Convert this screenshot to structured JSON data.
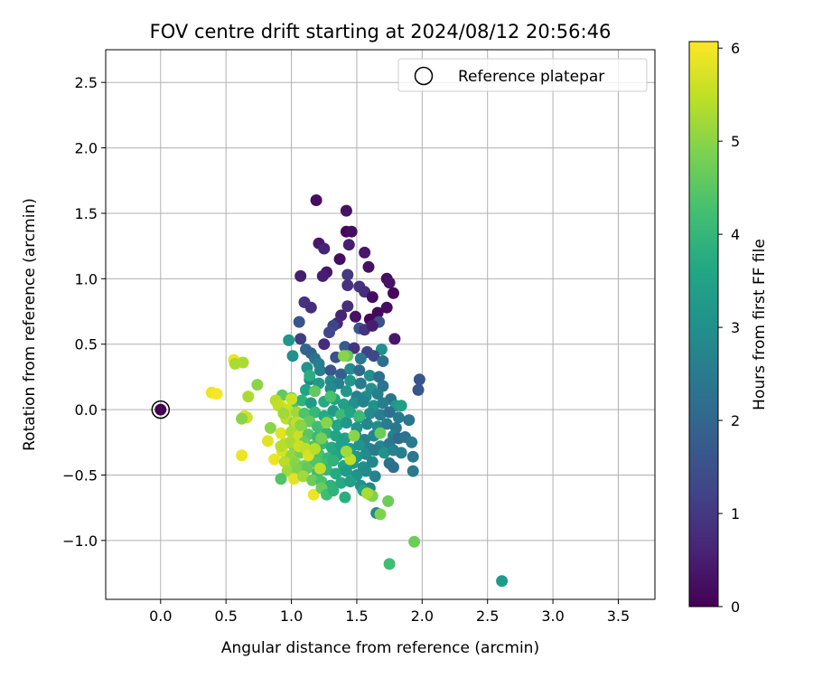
{
  "chart_data": {
    "type": "scatter",
    "title": "FOV centre drift starting at 2024/08/12 20:56:46",
    "xlabel": "Angular distance from reference (arcmin)",
    "ylabel": "Rotation from reference (arcmin)",
    "xlim": [
      -0.42,
      3.78
    ],
    "ylim": [
      -1.45,
      2.75
    ],
    "x_ticks": [
      0.0,
      0.5,
      1.0,
      1.5,
      2.0,
      2.5,
      3.0,
      3.5
    ],
    "x_tick_labels": [
      "0.0",
      "0.5",
      "1.0",
      "1.5",
      "2.0",
      "2.5",
      "3.0",
      "3.5"
    ],
    "y_ticks": [
      -1.0,
      -0.5,
      0.0,
      0.5,
      1.0,
      1.5,
      2.0,
      2.5
    ],
    "y_tick_labels": [
      "−1.0",
      "−0.5",
      "0.0",
      "0.5",
      "1.0",
      "1.5",
      "2.0",
      "2.5"
    ],
    "grid": true,
    "legend": {
      "label": "Reference platepar",
      "placement": "top-right"
    },
    "colorbar": {
      "label": "Hours from first FF file",
      "colormap": "viridis",
      "range": [
        0,
        6.07
      ],
      "ticks": [
        0,
        1,
        2,
        3,
        4,
        5,
        6
      ],
      "tick_labels": [
        "0",
        "1",
        "2",
        "3",
        "4",
        "5",
        "6"
      ]
    },
    "reference_point": {
      "x": 0.0,
      "y": 0.0,
      "hours": 0.0
    },
    "points": [
      [
        1.19,
        1.6,
        0.2
      ],
      [
        1.42,
        1.52,
        0.3
      ],
      [
        1.42,
        1.36,
        0.1
      ],
      [
        1.46,
        1.36,
        0.2
      ],
      [
        1.44,
        1.26,
        0.5
      ],
      [
        1.21,
        1.27,
        0.4
      ],
      [
        1.25,
        1.23,
        0.6
      ],
      [
        1.56,
        1.2,
        0.4
      ],
      [
        1.37,
        1.15,
        0.2
      ],
      [
        1.59,
        1.09,
        0.3
      ],
      [
        1.27,
        1.05,
        0.4
      ],
      [
        1.24,
        1.02,
        0.5
      ],
      [
        1.07,
        1.02,
        0.5
      ],
      [
        1.43,
        1.03,
        1.0
      ],
      [
        1.43,
        0.95,
        0.9
      ],
      [
        1.73,
        1.0,
        0.2
      ],
      [
        1.75,
        0.97,
        0.3
      ],
      [
        1.52,
        0.94,
        0.9
      ],
      [
        1.56,
        0.9,
        0.8
      ],
      [
        1.78,
        0.89,
        0.1
      ],
      [
        1.62,
        0.86,
        0.2
      ],
      [
        1.1,
        0.82,
        0.9
      ],
      [
        1.15,
        0.78,
        0.8
      ],
      [
        1.43,
        0.79,
        0.8
      ],
      [
        1.73,
        0.78,
        0.2
      ],
      [
        1.66,
        0.74,
        0.1
      ],
      [
        1.06,
        0.67,
        1.6
      ],
      [
        1.38,
        0.72,
        0.6
      ],
      [
        1.49,
        0.71,
        0.3
      ],
      [
        1.6,
        0.69,
        0.1
      ],
      [
        1.67,
        0.67,
        1.5
      ],
      [
        1.35,
        0.66,
        0.7
      ],
      [
        1.32,
        0.64,
        1.2
      ],
      [
        1.52,
        0.62,
        1.6
      ],
      [
        1.56,
        0.61,
        0.9
      ],
      [
        1.62,
        0.64,
        0.5
      ],
      [
        1.79,
        0.54,
        0.4
      ],
      [
        1.29,
        0.59,
        1.3
      ],
      [
        0.98,
        0.53,
        3.2
      ],
      [
        1.07,
        0.54,
        1.1
      ],
      [
        1.25,
        0.5,
        0.8
      ],
      [
        1.41,
        0.48,
        1.8
      ],
      [
        1.48,
        0.47,
        0.9
      ],
      [
        1.58,
        0.44,
        1.2
      ],
      [
        1.69,
        0.46,
        3.0
      ],
      [
        1.11,
        0.46,
        2.0
      ],
      [
        1.15,
        0.43,
        1.9
      ],
      [
        1.01,
        0.41,
        3.0
      ],
      [
        1.18,
        0.39,
        2.3
      ],
      [
        1.34,
        0.4,
        1.5
      ],
      [
        1.43,
        0.41,
        4.6
      ],
      [
        1.53,
        0.39,
        2.4
      ],
      [
        1.63,
        0.41,
        1.3
      ],
      [
        1.7,
        0.37,
        2.2
      ],
      [
        1.21,
        0.35,
        2.6
      ],
      [
        1.12,
        0.32,
        3.1
      ],
      [
        1.22,
        0.3,
        2.6
      ],
      [
        1.3,
        0.3,
        1.6
      ],
      [
        1.38,
        0.27,
        1.8
      ],
      [
        1.45,
        0.31,
        2.9
      ],
      [
        1.52,
        0.3,
        2.1
      ],
      [
        1.6,
        0.26,
        3.0
      ],
      [
        1.67,
        0.25,
        2.2
      ],
      [
        1.98,
        0.23,
        1.6
      ],
      [
        1.14,
        0.23,
        2.8
      ],
      [
        1.21,
        0.2,
        3.3
      ],
      [
        1.3,
        0.22,
        2.9
      ],
      [
        1.36,
        0.2,
        2.6
      ],
      [
        1.45,
        0.22,
        3.2
      ],
      [
        1.53,
        0.2,
        2.5
      ],
      [
        1.61,
        0.16,
        3.0
      ],
      [
        1.7,
        0.18,
        2.3
      ],
      [
        1.97,
        0.15,
        1.6
      ],
      [
        1.11,
        0.15,
        3.5
      ],
      [
        1.18,
        0.14,
        4.6
      ],
      [
        1.3,
        0.16,
        2.9
      ],
      [
        1.42,
        0.14,
        3.2
      ],
      [
        1.5,
        0.1,
        2.6
      ],
      [
        1.57,
        0.1,
        2.9
      ],
      [
        1.66,
        0.12,
        2.6
      ],
      [
        1.76,
        0.08,
        2.3
      ],
      [
        0.93,
        0.11,
        4.6
      ],
      [
        1.0,
        0.09,
        4.8
      ],
      [
        1.02,
        0.06,
        4.3
      ],
      [
        1.08,
        0.07,
        3.9
      ],
      [
        1.15,
        0.05,
        3.3
      ],
      [
        1.25,
        0.06,
        3.7
      ],
      [
        1.33,
        0.08,
        3.5
      ],
      [
        1.4,
        0.04,
        3.4
      ],
      [
        1.48,
        0.05,
        3.0
      ],
      [
        1.55,
        0.06,
        2.7
      ],
      [
        1.63,
        0.03,
        3.1
      ],
      [
        1.7,
        0.05,
        2.6
      ],
      [
        1.8,
        0.03,
        3.2
      ],
      [
        1.84,
        0.03,
        3.4
      ],
      [
        0.92,
        0.03,
        5.8
      ],
      [
        0.97,
        0.0,
        5.6
      ],
      [
        1.04,
        -0.02,
        5.2
      ],
      [
        1.1,
        -0.03,
        4.4
      ],
      [
        1.18,
        -0.02,
        4.0
      ],
      [
        1.25,
        -0.05,
        3.7
      ],
      [
        1.32,
        -0.01,
        3.3
      ],
      [
        1.38,
        -0.04,
        4.1
      ],
      [
        1.45,
        -0.02,
        3.5
      ],
      [
        1.52,
        -0.06,
        3.0
      ],
      [
        1.6,
        -0.03,
        2.9
      ],
      [
        1.68,
        -0.04,
        2.6
      ],
      [
        1.75,
        -0.02,
        2.2
      ],
      [
        1.82,
        -0.06,
        2.5
      ],
      [
        1.9,
        -0.08,
        2.4
      ],
      [
        0.96,
        -0.07,
        5.5
      ],
      [
        1.02,
        -0.1,
        5.1
      ],
      [
        1.08,
        -0.12,
        4.9
      ],
      [
        1.14,
        -0.09,
        4.6
      ],
      [
        1.2,
        -0.13,
        4.2
      ],
      [
        1.28,
        -0.08,
        3.8
      ],
      [
        1.35,
        -0.12,
        3.6
      ],
      [
        1.42,
        -0.1,
        3.2
      ],
      [
        1.5,
        -0.14,
        3.1
      ],
      [
        1.58,
        -0.11,
        2.8
      ],
      [
        1.66,
        -0.13,
        2.9
      ],
      [
        1.73,
        -0.11,
        2.6
      ],
      [
        1.8,
        -0.14,
        2.4
      ],
      [
        0.84,
        -0.14,
        5.0
      ],
      [
        0.92,
        -0.18,
        5.8
      ],
      [
        1.0,
        -0.17,
        5.3
      ],
      [
        1.06,
        -0.2,
        5.6
      ],
      [
        1.13,
        -0.19,
        4.5
      ],
      [
        1.2,
        -0.21,
        4.1
      ],
      [
        1.27,
        -0.18,
        3.9
      ],
      [
        1.34,
        -0.2,
        3.5
      ],
      [
        1.41,
        -0.22,
        3.4
      ],
      [
        1.49,
        -0.19,
        3.0
      ],
      [
        1.56,
        -0.23,
        2.7
      ],
      [
        1.63,
        -0.2,
        2.8
      ],
      [
        1.68,
        -0.18,
        4.7
      ],
      [
        1.78,
        -0.2,
        2.6
      ],
      [
        1.82,
        -0.22,
        2.1
      ],
      [
        1.87,
        -0.21,
        2.3
      ],
      [
        0.82,
        -0.24,
        5.8
      ],
      [
        0.95,
        -0.26,
        5.5
      ],
      [
        1.02,
        -0.28,
        5.0
      ],
      [
        1.1,
        -0.25,
        4.7
      ],
      [
        1.17,
        -0.28,
        4.4
      ],
      [
        1.24,
        -0.26,
        4.0
      ],
      [
        1.31,
        -0.29,
        3.7
      ],
      [
        1.38,
        -0.27,
        3.4
      ],
      [
        1.45,
        -0.3,
        3.3
      ],
      [
        1.52,
        -0.27,
        3.1
      ],
      [
        1.6,
        -0.3,
        2.7
      ],
      [
        1.68,
        -0.28,
        2.8
      ],
      [
        1.75,
        -0.26,
        2.4
      ],
      [
        1.92,
        -0.25,
        2.5
      ],
      [
        0.62,
        -0.35,
        5.9
      ],
      [
        0.93,
        -0.32,
        5.7
      ],
      [
        1.0,
        -0.35,
        5.1
      ],
      [
        1.07,
        -0.33,
        4.8
      ],
      [
        1.14,
        -0.36,
        4.6
      ],
      [
        1.21,
        -0.34,
        4.3
      ],
      [
        1.28,
        -0.37,
        4.0
      ],
      [
        1.35,
        -0.35,
        3.6
      ],
      [
        1.42,
        -0.33,
        3.3
      ],
      [
        1.5,
        -0.36,
        3.2
      ],
      [
        1.57,
        -0.34,
        2.9
      ],
      [
        1.64,
        -0.31,
        2.5
      ],
      [
        1.71,
        -0.33,
        3.1
      ],
      [
        1.78,
        -0.31,
        2.7
      ],
      [
        1.84,
        -0.33,
        2.6
      ],
      [
        1.93,
        -0.36,
        2.4
      ],
      [
        0.87,
        -0.38,
        5.9
      ],
      [
        0.95,
        -0.4,
        5.4
      ],
      [
        1.03,
        -0.41,
        5.0
      ],
      [
        1.1,
        -0.43,
        4.7
      ],
      [
        1.18,
        -0.4,
        4.4
      ],
      [
        1.25,
        -0.42,
        4.2
      ],
      [
        1.32,
        -0.39,
        3.9
      ],
      [
        1.4,
        -0.43,
        3.5
      ],
      [
        1.47,
        -0.41,
        3.3
      ],
      [
        1.55,
        -0.44,
        3.0
      ],
      [
        1.62,
        -0.4,
        2.8
      ],
      [
        1.75,
        -0.41,
        2.3
      ],
      [
        1.78,
        -0.44,
        2.2
      ],
      [
        0.97,
        -0.47,
        5.2
      ],
      [
        1.05,
        -0.46,
        4.9
      ],
      [
        1.12,
        -0.45,
        4.6
      ],
      [
        1.2,
        -0.48,
        4.2
      ],
      [
        1.27,
        -0.46,
        4.0
      ],
      [
        1.34,
        -0.49,
        3.7
      ],
      [
        1.42,
        -0.47,
        3.3
      ],
      [
        1.5,
        -0.5,
        3.1
      ],
      [
        1.57,
        -0.47,
        2.9
      ],
      [
        1.64,
        -0.51,
        2.7
      ],
      [
        1.93,
        -0.47,
        2.5
      ],
      [
        0.92,
        -0.53,
        4.4
      ],
      [
        1.02,
        -0.53,
        5.8
      ],
      [
        1.09,
        -0.51,
        5.2
      ],
      [
        1.16,
        -0.54,
        4.7
      ],
      [
        1.23,
        -0.55,
        4.3
      ],
      [
        1.3,
        -0.58,
        3.9
      ],
      [
        1.38,
        -0.56,
        3.7
      ],
      [
        1.45,
        -0.55,
        3.4
      ],
      [
        1.53,
        -0.58,
        3.1
      ],
      [
        1.6,
        -0.6,
        2.8
      ],
      [
        1.17,
        -0.65,
        5.9
      ],
      [
        1.23,
        -0.6,
        4.7
      ],
      [
        1.27,
        -0.65,
        4.2
      ],
      [
        1.32,
        -0.62,
        3.9
      ],
      [
        1.41,
        -0.67,
        3.8
      ],
      [
        1.55,
        -0.62,
        3.5
      ],
      [
        1.6,
        -0.65,
        5.0
      ],
      [
        1.62,
        -0.66,
        4.9
      ],
      [
        1.74,
        -0.7,
        4.7
      ],
      [
        1.65,
        -0.79,
        2.8
      ],
      [
        1.68,
        -0.8,
        4.9
      ],
      [
        1.94,
        -1.01,
        4.7
      ],
      [
        1.75,
        -1.18,
        4.2
      ],
      [
        2.61,
        -1.31,
        3.3
      ],
      [
        0.56,
        0.38,
        5.9
      ],
      [
        0.57,
        0.35,
        5.3
      ],
      [
        0.63,
        0.36,
        5.3
      ],
      [
        0.39,
        0.13,
        5.9
      ],
      [
        0.43,
        0.12,
        6.0
      ],
      [
        0.74,
        0.19,
        5.0
      ],
      [
        0.67,
        0.1,
        5.3
      ],
      [
        0.64,
        -0.05,
        5.8
      ],
      [
        0.66,
        -0.06,
        5.6
      ],
      [
        0.62,
        -0.07,
        5.0
      ],
      [
        0.88,
        0.07,
        5.4
      ],
      [
        0.9,
        0.03,
        5.5
      ],
      [
        0.94,
        -0.03,
        5.2
      ],
      [
        1.0,
        0.08,
        5.6
      ],
      [
        1.04,
        -0.1,
        5.5
      ],
      [
        1.07,
        -0.12,
        5.0
      ],
      [
        0.99,
        -0.25,
        5.3
      ],
      [
        1.06,
        -0.28,
        5.6
      ],
      [
        0.92,
        -0.28,
        5.4
      ],
      [
        1.11,
        -0.3,
        5.5
      ],
      [
        1.13,
        -0.35,
        5.7
      ],
      [
        1.18,
        -0.3,
        5.4
      ],
      [
        1.22,
        -0.45,
        5.5
      ],
      [
        1.27,
        -0.1,
        5.0
      ],
      [
        1.45,
        -0.38,
        5.5
      ],
      [
        1.42,
        -0.32,
        5.2
      ],
      [
        1.48,
        -0.2,
        5.0
      ],
      [
        1.4,
        0.41,
        5.0
      ],
      [
        1.58,
        -0.64,
        5.3
      ],
      [
        1.52,
        -0.05,
        4.1
      ],
      [
        1.3,
        0.1,
        4.3
      ],
      [
        1.14,
        0.26,
        3.8
      ],
      [
        1.23,
        -0.22,
        4.8
      ]
    ]
  }
}
